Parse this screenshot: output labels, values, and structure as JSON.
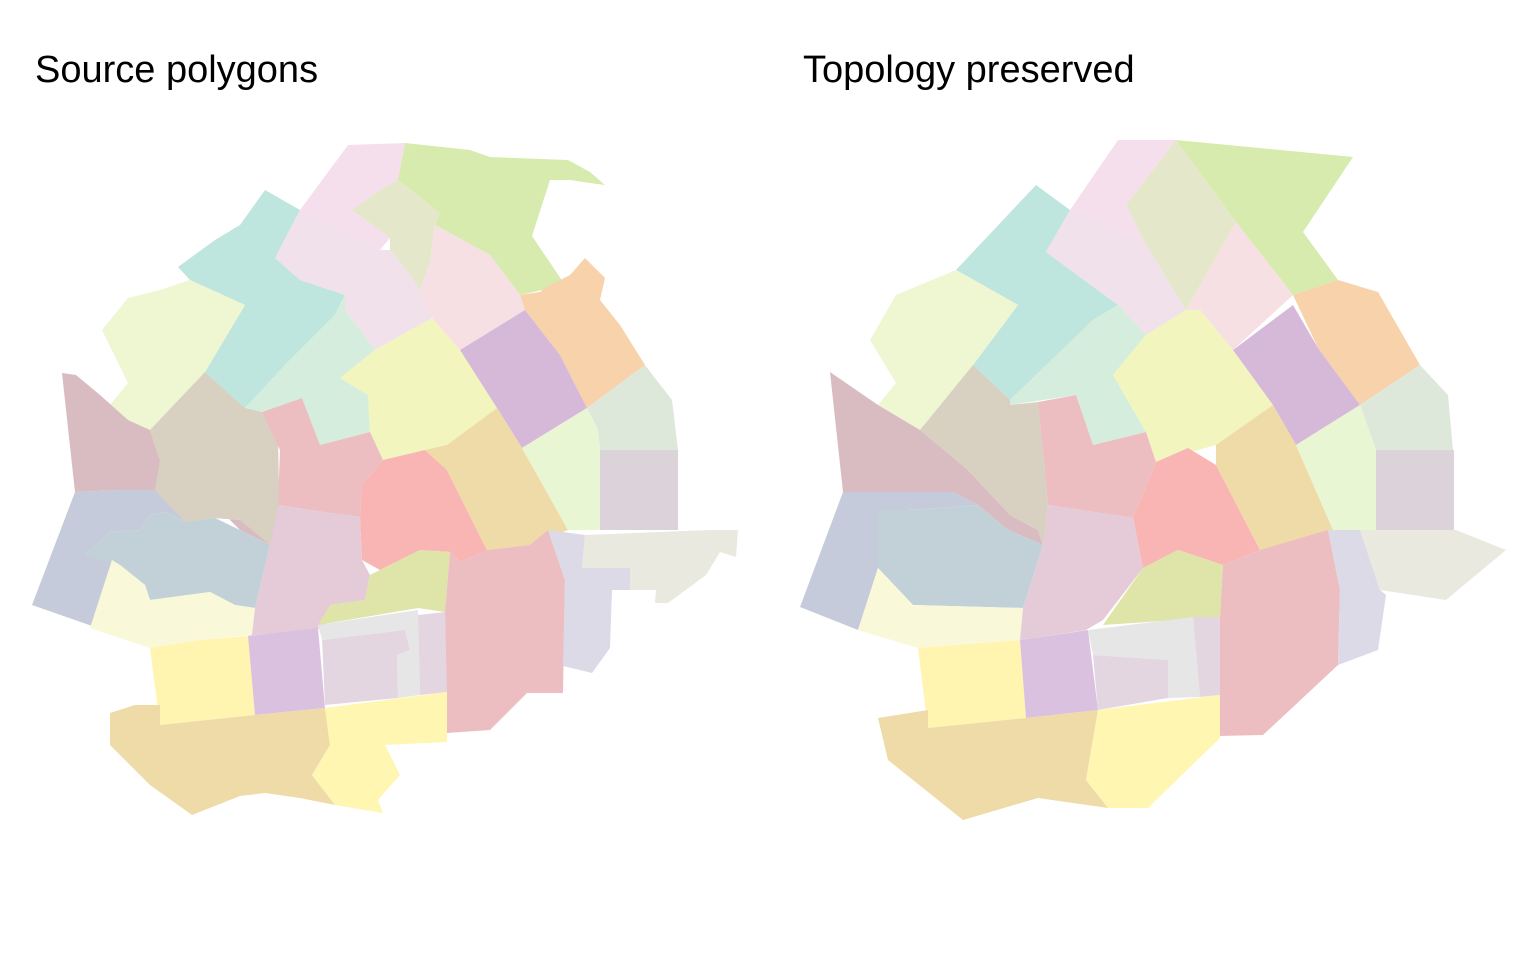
{
  "panels": [
    {
      "id": "source",
      "title": "Source polygons"
    },
    {
      "id": "simplified",
      "title": "Topology preserved"
    }
  ],
  "palette": {
    "pink_light": "#f6dfec",
    "green_yellow": "#d6ebad",
    "khaki": "#e4e7c9",
    "teal": "#bee5de",
    "lavender_pink": "#f0e1ea",
    "rose_light": "#f6e0e3",
    "orange": "#f8d2aa",
    "lime_pale": "#eef6d2",
    "mint": "#d5eddd",
    "yellow_light": "#f2f5bd",
    "purple": "#d6b9d8",
    "sage": "#dee8da",
    "mauve": "#d9bcc1",
    "taupe": "#d8d0c0",
    "salmon": "#ecbec1",
    "red": "#f8b5b4",
    "tan": "#efdba7",
    "lime_pale2": "#e9f6d3",
    "grey_mauve": "#dcd3da",
    "blue_grey": "#c5cbda",
    "blue_pale": "#c2d1d8",
    "cream": "#f9f9d9",
    "pink_mauve": "#e4cbd7",
    "olive": "#dfe4a9",
    "beige": "#e9e9df",
    "lilac": "#dcdae6",
    "yellow": "#fff4b0",
    "violet": "#dac1df",
    "light_grey": "#e6e6e6",
    "pale_mauve": "#e4d6e1",
    "tan_dark": "#eedba8",
    "yellow2": "#fff6b2"
  }
}
